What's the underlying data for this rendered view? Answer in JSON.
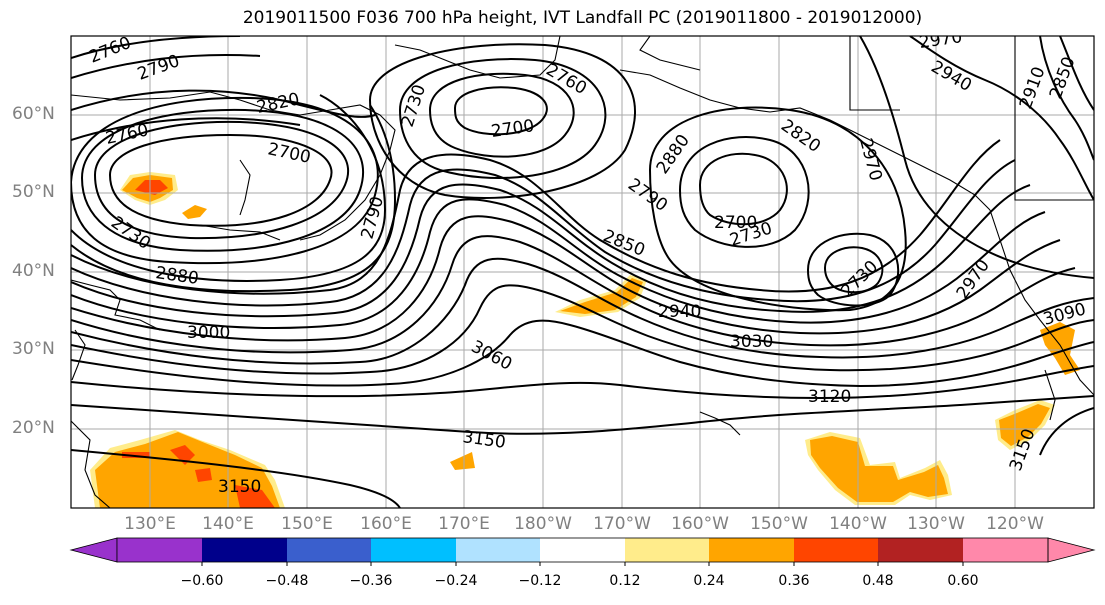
{
  "title": "2019011500 F036 700 hPa height, IVT Landfall PC (2019011800 - 2019012000)",
  "lat_labels": [
    "60°N",
    "50°N",
    "40°N",
    "30°N",
    "20°N"
  ],
  "lon_labels": [
    "130°E",
    "140°E",
    "150°E",
    "160°E",
    "170°E",
    "180°W",
    "170°W",
    "160°W",
    "150°W",
    "140°W",
    "130°W",
    "120°W"
  ],
  "contour_labels": [
    "2760",
    "2790",
    "2820",
    "2730",
    "2760",
    "2700",
    "2760",
    "2700",
    "2820",
    "2790",
    "2700",
    "2730",
    "2790",
    "2850",
    "2880",
    "2730",
    "2970",
    "2940",
    "2910",
    "2850",
    "2970",
    "3000",
    "2940",
    "3060",
    "3030",
    "3090",
    "3120",
    "3150",
    "3150",
    "3150",
    "2730",
    "2880",
    "2970"
  ],
  "colorbar": {
    "ticks": [
      "−0.60",
      "−0.48",
      "−0.36",
      "−0.24",
      "−0.12",
      "0.12",
      "0.24",
      "0.36",
      "0.48",
      "0.60"
    ],
    "colors": [
      "#9932cc",
      "#00008b",
      "#3a5fcd",
      "#00bfff",
      "#b0e2ff",
      "#ffffff",
      "#ffec8b",
      "#ffa500",
      "#ff4500",
      "#b22222",
      "#ff88aa"
    ]
  },
  "map_layers": {
    "contour_variable": "700 hPa height",
    "shading_variable": "IVT Landfall PC",
    "shading_colors_seen": [
      "#ffec8b",
      "#ffa500",
      "#ff4500"
    ],
    "gridlines": true
  }
}
